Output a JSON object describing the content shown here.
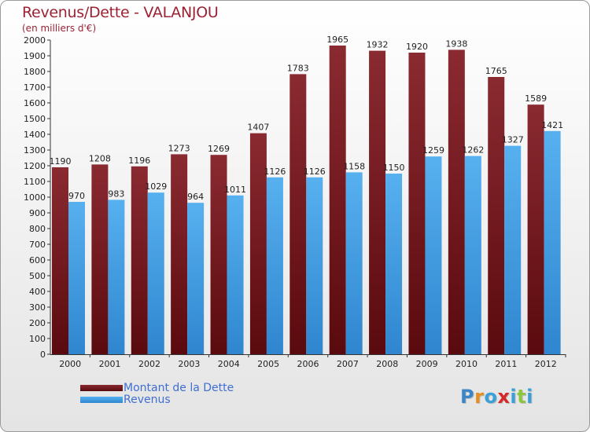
{
  "title": "Revenus/Dette - VALANJOU",
  "subtitle": "(en milliers d'€)",
  "logo": {
    "letters": [
      {
        "ch": "P",
        "color": "#3a86c8"
      },
      {
        "ch": "r",
        "color": "#e58f1e"
      },
      {
        "ch": "o",
        "color": "#3aa0d8"
      },
      {
        "ch": "x",
        "color": "#d62828"
      },
      {
        "ch": "i",
        "color": "#3aa0d8"
      },
      {
        "ch": "t",
        "color": "#8cc63f"
      },
      {
        "ch": "i",
        "color": "#3aa0d8"
      }
    ]
  },
  "chart_data": {
    "type": "bar",
    "title": "Revenus/Dette - VALANJOU",
    "subtitle": "(en milliers d'€)",
    "categories": [
      "2000",
      "2001",
      "2002",
      "2003",
      "2004",
      "2005",
      "2006",
      "2007",
      "2008",
      "2009",
      "2010",
      "2011",
      "2012"
    ],
    "series": [
      {
        "name": "Montant de la Dette",
        "color": "#7b1a1f",
        "values": [
          1190,
          1208,
          1196,
          1273,
          1269,
          1407,
          1783,
          1965,
          1932,
          1920,
          1938,
          1765,
          1589
        ]
      },
      {
        "name": "Revenus",
        "color": "#4aa3e6",
        "values": [
          970,
          983,
          1029,
          964,
          1011,
          1126,
          1126,
          1158,
          1150,
          1259,
          1262,
          1327,
          1421
        ]
      }
    ],
    "ylim": [
      0,
      2000
    ],
    "yticks": [
      0,
      100,
      200,
      300,
      400,
      500,
      600,
      700,
      800,
      900,
      1000,
      1100,
      1200,
      1300,
      1400,
      1500,
      1600,
      1700,
      1800,
      1900,
      2000
    ],
    "grid": false,
    "legend_position": "bottom-left"
  }
}
